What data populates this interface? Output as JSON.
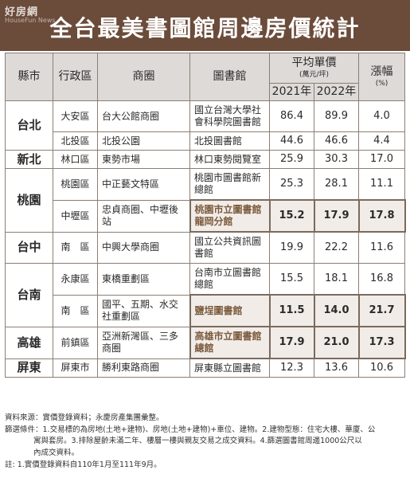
{
  "logo": {
    "cn": "好房網",
    "en": "HouseFun News"
  },
  "title": "全台最美書圖館周邊房價統計",
  "headers": {
    "county": "縣市",
    "district": "行政區",
    "area": "商圈",
    "library": "圖書館",
    "price": "平均單價",
    "price_unit": "(萬元/坪)",
    "year1": "2021年",
    "year2": "2022年",
    "change": "漲幅",
    "change_unit": "(%)"
  },
  "rows": [
    {
      "county": "台北",
      "district": "大安區",
      "area": "台大公館商圈",
      "library": "國立台灣大學社會科學院圖書館",
      "y2021": "86.4",
      "y2022": "89.9",
      "change": "4.0"
    },
    {
      "district": "北投區",
      "area": "北投公園",
      "library": "北投圖書館",
      "y2021": "44.6",
      "y2022": "46.6",
      "change": "4.4"
    },
    {
      "county": "新北",
      "district": "林口區",
      "area": "東勢市場",
      "library": "林口東勢閱覽室",
      "y2021": "25.9",
      "y2022": "30.3",
      "change": "17.0"
    },
    {
      "county": "桃園",
      "district": "桃園區",
      "area": "中正藝文特區",
      "library": "桃園市圖書館新總館",
      "y2021": "25.3",
      "y2022": "28.1",
      "change": "11.1"
    },
    {
      "district": "中壢區",
      "area": "忠貞商圈、中壢後站",
      "library": "桃園市立圖書館龍岡分館",
      "y2021": "15.2",
      "y2022": "17.9",
      "change": "17.8"
    },
    {
      "county": "台中",
      "district": "南　區",
      "area": "中興大學商圈",
      "library": "國立公共資訊圖書館",
      "y2021": "19.9",
      "y2022": "22.2",
      "change": "11.6"
    },
    {
      "county": "台南",
      "district": "永康區",
      "area": "東橋重劃區",
      "library": "台南市立圖書館總館",
      "y2021": "15.5",
      "y2022": "18.1",
      "change": "16.8"
    },
    {
      "district": "南　區",
      "area": "國平、五期、水交社重劃區",
      "library": "鹽埕圖書館",
      "y2021": "11.5",
      "y2022": "14.0",
      "change": "21.7"
    },
    {
      "county": "高雄",
      "district": "前鎮區",
      "area": "亞洲新灣區、三多商圈",
      "library": "高雄市立圖書館總館",
      "y2021": "17.9",
      "y2022": "21.0",
      "change": "17.3"
    },
    {
      "county": "屏東",
      "district": "屏東市",
      "area": "勝利東路商圈",
      "library": "屏東縣立圖書館",
      "y2021": "12.3",
      "y2022": "13.6",
      "change": "10.6"
    }
  ],
  "notes": {
    "source": "資料來源：實價登錄資料；永慶房產集團彙整。",
    "filter_1": "篩選條件：1.交易標的為房地(土地+建物)、房地(土地+建物)+車位、建物。2.建物型態：住宅大樓、華廈、公",
    "filter_2": "寓與套房。3.排除屋齡未滿二年、樓層一樓與親友交易之成交資料。4.篩選圖書館周邊1000公尺以",
    "filter_3": "內成交資料。",
    "note": "註: 1.實價登錄資料自110年1月至111年9月。"
  },
  "colors": {
    "title_bg": "#6b4b3a",
    "header_bg": "#dedad7",
    "highlight_bg": "#f1ece7",
    "highlight_text": "#7b5a3d"
  }
}
